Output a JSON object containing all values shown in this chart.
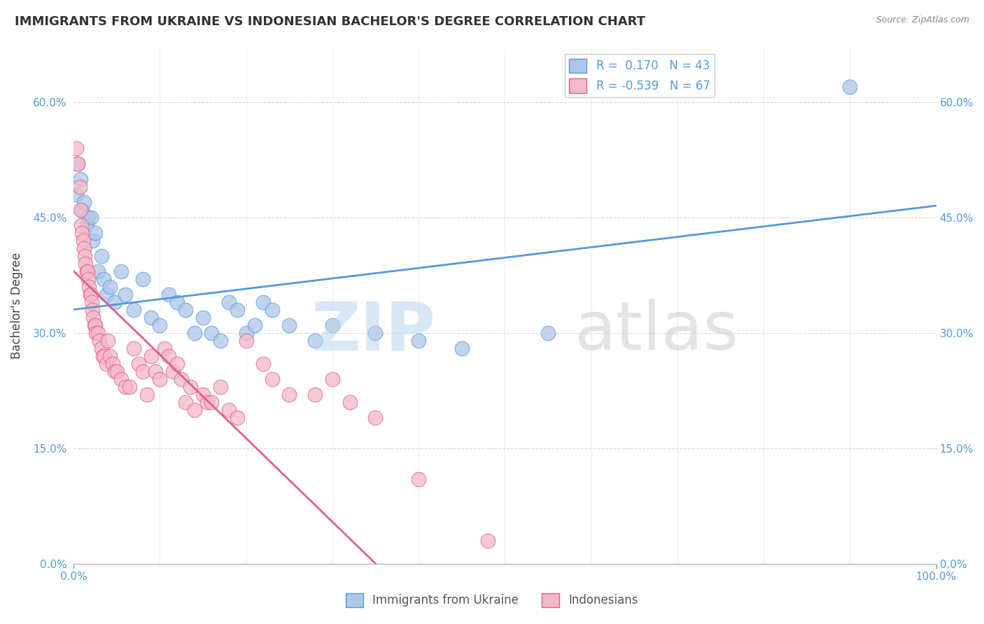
{
  "title": "IMMIGRANTS FROM UKRAINE VS INDONESIAN BACHELOR'S DEGREE CORRELATION CHART",
  "source": "Source: ZipAtlas.com",
  "ylabel": "Bachelor's Degree",
  "xlim": [
    0,
    100
  ],
  "ylim": [
    0,
    67
  ],
  "yticks": [
    0,
    15,
    30,
    45,
    60
  ],
  "ytick_labels": [
    "0.0%",
    "15.0%",
    "30.0%",
    "45.0%",
    "60.0%"
  ],
  "xticks": [
    0,
    100
  ],
  "xtick_labels": [
    "0.0%",
    "100.0%"
  ],
  "legend_ukraine": "Immigrants from Ukraine",
  "legend_indonesian": "Indonesians",
  "r_ukraine": "0.170",
  "n_ukraine": "43",
  "r_indonesian": "-0.539",
  "n_indonesian": "67",
  "ukraine_color": "#aec6e8",
  "indonesian_color": "#f4b8c8",
  "ukraine_line_color": "#5599dd",
  "indonesian_line_color": "#e06080",
  "background_color": "#ffffff",
  "ukraine_points": [
    [
      0.3,
      48
    ],
    [
      0.5,
      52
    ],
    [
      0.8,
      50
    ],
    [
      1.0,
      46
    ],
    [
      1.2,
      47
    ],
    [
      1.5,
      44
    ],
    [
      1.7,
      45
    ],
    [
      2.0,
      45
    ],
    [
      2.2,
      42
    ],
    [
      2.5,
      43
    ],
    [
      2.8,
      38
    ],
    [
      3.2,
      40
    ],
    [
      3.5,
      37
    ],
    [
      3.8,
      35
    ],
    [
      4.2,
      36
    ],
    [
      4.8,
      34
    ],
    [
      5.5,
      38
    ],
    [
      6.0,
      35
    ],
    [
      7.0,
      33
    ],
    [
      8.0,
      37
    ],
    [
      9.0,
      32
    ],
    [
      10.0,
      31
    ],
    [
      11.0,
      35
    ],
    [
      12.0,
      34
    ],
    [
      13.0,
      33
    ],
    [
      14.0,
      30
    ],
    [
      15.0,
      32
    ],
    [
      16.0,
      30
    ],
    [
      17.0,
      29
    ],
    [
      18.0,
      34
    ],
    [
      19.0,
      33
    ],
    [
      20.0,
      30
    ],
    [
      21.0,
      31
    ],
    [
      22.0,
      34
    ],
    [
      23.0,
      33
    ],
    [
      25.0,
      31
    ],
    [
      28.0,
      29
    ],
    [
      30.0,
      31
    ],
    [
      35.0,
      30
    ],
    [
      40.0,
      29
    ],
    [
      45.0,
      28
    ],
    [
      55.0,
      30
    ],
    [
      90.0,
      62
    ]
  ],
  "indonesian_points": [
    [
      0.3,
      54
    ],
    [
      0.5,
      52
    ],
    [
      0.7,
      49
    ],
    [
      0.8,
      46
    ],
    [
      0.9,
      44
    ],
    [
      1.0,
      43
    ],
    [
      1.1,
      42
    ],
    [
      1.2,
      41
    ],
    [
      1.3,
      40
    ],
    [
      1.4,
      39
    ],
    [
      1.5,
      38
    ],
    [
      1.6,
      38
    ],
    [
      1.7,
      37
    ],
    [
      1.8,
      36
    ],
    [
      1.9,
      35
    ],
    [
      2.0,
      35
    ],
    [
      2.1,
      34
    ],
    [
      2.2,
      33
    ],
    [
      2.3,
      32
    ],
    [
      2.4,
      31
    ],
    [
      2.5,
      31
    ],
    [
      2.6,
      30
    ],
    [
      2.8,
      30
    ],
    [
      3.0,
      29
    ],
    [
      3.2,
      28
    ],
    [
      3.4,
      27
    ],
    [
      3.6,
      27
    ],
    [
      3.8,
      26
    ],
    [
      4.0,
      29
    ],
    [
      4.2,
      27
    ],
    [
      4.5,
      26
    ],
    [
      4.8,
      25
    ],
    [
      5.0,
      25
    ],
    [
      5.5,
      24
    ],
    [
      6.0,
      23
    ],
    [
      6.5,
      23
    ],
    [
      7.0,
      28
    ],
    [
      7.5,
      26
    ],
    [
      8.0,
      25
    ],
    [
      8.5,
      22
    ],
    [
      9.0,
      27
    ],
    [
      9.5,
      25
    ],
    [
      10.0,
      24
    ],
    [
      10.5,
      28
    ],
    [
      11.0,
      27
    ],
    [
      11.5,
      25
    ],
    [
      12.0,
      26
    ],
    [
      12.5,
      24
    ],
    [
      13.0,
      21
    ],
    [
      13.5,
      23
    ],
    [
      14.0,
      20
    ],
    [
      15.0,
      22
    ],
    [
      15.5,
      21
    ],
    [
      16.0,
      21
    ],
    [
      17.0,
      23
    ],
    [
      18.0,
      20
    ],
    [
      19.0,
      19
    ],
    [
      20.0,
      29
    ],
    [
      22.0,
      26
    ],
    [
      23.0,
      24
    ],
    [
      25.0,
      22
    ],
    [
      28.0,
      22
    ],
    [
      30.0,
      24
    ],
    [
      32.0,
      21
    ],
    [
      35.0,
      19
    ],
    [
      40.0,
      11
    ],
    [
      48.0,
      3
    ]
  ],
  "ukraine_trendline_x": [
    0,
    100
  ],
  "ukraine_trendline_y": [
    33.0,
    46.5
  ],
  "indonesian_trendline_x": [
    0,
    35
  ],
  "indonesian_trendline_y": [
    38.0,
    0.0
  ]
}
